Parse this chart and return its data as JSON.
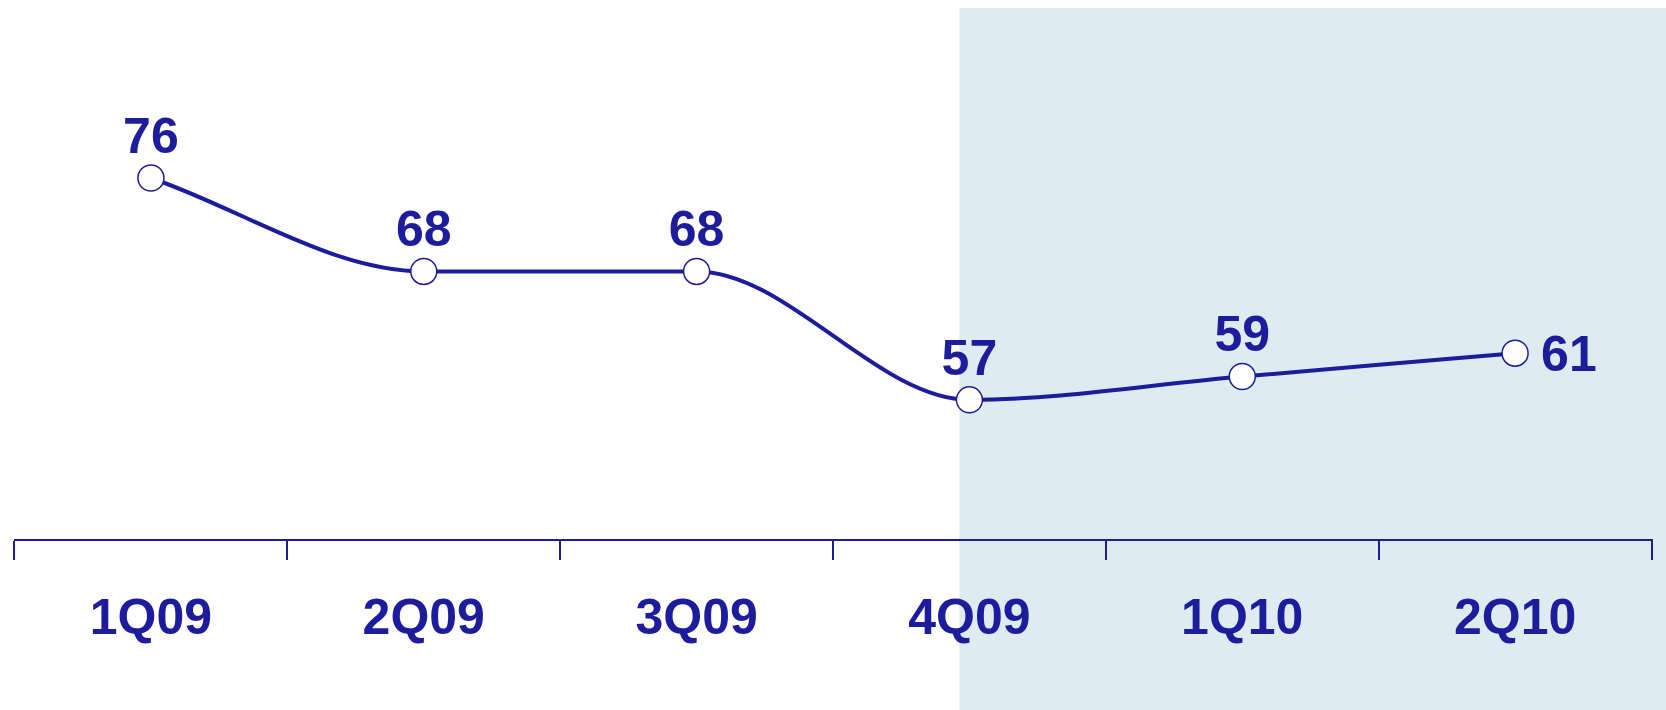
{
  "chart_data": {
    "type": "line",
    "categories": [
      "1Q09",
      "2Q09",
      "3Q09",
      "4Q09",
      "1Q10",
      "2Q10"
    ],
    "series": [
      {
        "color": "#1c1c9c",
        "values": [
          76,
          68,
          68,
          57,
          59,
          61
        ]
      }
    ],
    "marker": "circle",
    "data_labels": true,
    "grid": false,
    "legend": false,
    "bands": [
      {
        "axis": "x",
        "from": "4Q09",
        "to": "2Q10",
        "color": "#deebf1"
      }
    ]
  }
}
